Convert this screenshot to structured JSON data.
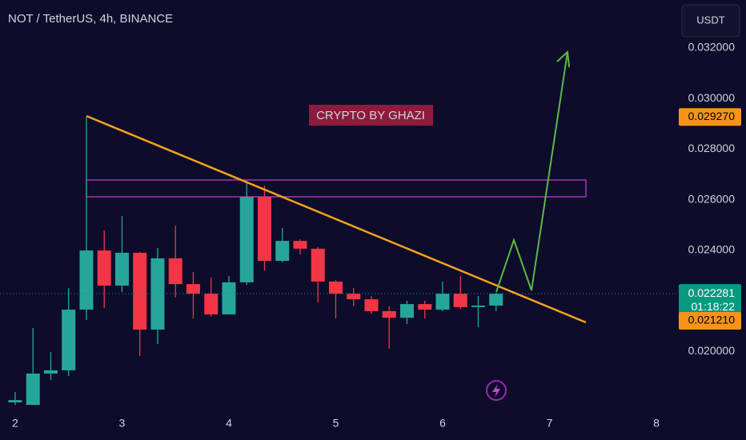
{
  "chart_data": {
    "type": "candlestick",
    "title": "NOT / TetherUS, 4h, BINANCE",
    "annotation": "CRYPTO BY GHAZI",
    "currency": "USDT",
    "x": [
      2,
      2.1667,
      2.3333,
      2.5,
      2.6667,
      2.8333,
      3,
      3.1667,
      3.3333,
      3.5,
      3.6667,
      3.8333,
      4,
      4.1667,
      4.3333,
      4.5,
      4.6667,
      4.8333,
      5,
      5.1667,
      5.3333,
      5.5,
      5.6667,
      5.8333,
      6,
      6.1667,
      6.3333,
      6.5
    ],
    "open": [
      0.01798,
      0.01788,
      0.01912,
      0.01925,
      0.02165,
      0.02399,
      0.0226,
      0.0239,
      0.02086,
      0.02368,
      0.02266,
      0.02228,
      0.02146,
      0.02273,
      0.02611,
      0.02358,
      0.02437,
      0.02406,
      0.02276,
      0.02228,
      0.02206,
      0.02159,
      0.02133,
      0.02187,
      0.02165,
      0.02228,
      0.02175,
      0.02181
    ],
    "high": [
      0.01839,
      0.02092,
      0.01997,
      0.02251,
      0.02927,
      0.02478,
      0.02535,
      0.02393,
      0.02409,
      0.02497,
      0.02314,
      0.02292,
      0.02298,
      0.02668,
      0.02656,
      0.02488,
      0.02444,
      0.02412,
      0.02282,
      0.02251,
      0.02219,
      0.02178,
      0.022,
      0.022,
      0.02276,
      0.02298,
      0.02219,
      0.02232
    ],
    "low": [
      0.01788,
      0.01788,
      0.01887,
      0.01902,
      0.02124,
      0.02171,
      0.02235,
      0.01982,
      0.02029,
      0.02213,
      0.0213,
      0.02137,
      0.02146,
      0.02263,
      0.0232,
      0.02352,
      0.02384,
      0.02194,
      0.0213,
      0.02178,
      0.02149,
      0.0201,
      0.02108,
      0.0213,
      0.02159,
      0.02168,
      0.02095,
      0.02159
    ],
    "close": [
      0.01807,
      0.01912,
      0.01925,
      0.02165,
      0.02399,
      0.0226,
      0.0239,
      0.02086,
      0.02368,
      0.02266,
      0.02228,
      0.02146,
      0.02273,
      0.02611,
      0.02358,
      0.02437,
      0.02406,
      0.02276,
      0.02228,
      0.02206,
      0.02159,
      0.02133,
      0.02187,
      0.02165,
      0.02228,
      0.02175,
      0.02181,
      0.02228
    ],
    "up_color": "#26a69a",
    "down_color": "#f23645",
    "xlim": [
      1.858,
      8.15
    ],
    "xticks": [
      2,
      3,
      4,
      5,
      6,
      7,
      8
    ],
    "ylim": [
      0.0176,
      0.0339
    ],
    "yticks": [
      {
        "value": 0.02,
        "label": "0.020000"
      },
      {
        "value": 0.024,
        "label": "0.024000"
      },
      {
        "value": 0.026,
        "label": "0.026000"
      },
      {
        "value": 0.028,
        "label": "0.028000"
      },
      {
        "value": 0.03,
        "label": "0.030000"
      },
      {
        "value": 0.032,
        "label": "0.032000"
      }
    ],
    "price_tags": [
      {
        "value": 0.02927,
        "label": "0.029270",
        "color": "#f7931a",
        "text_color": "#000000"
      },
      {
        "value": 0.022281,
        "label": "0.022281",
        "color": "#089981",
        "text_color": "#ffffff",
        "countdown": "01:18:22"
      },
      {
        "value": 0.02121,
        "label": "0.021210",
        "color": "#f7931a",
        "text_color": "#000000"
      }
    ]
  }
}
